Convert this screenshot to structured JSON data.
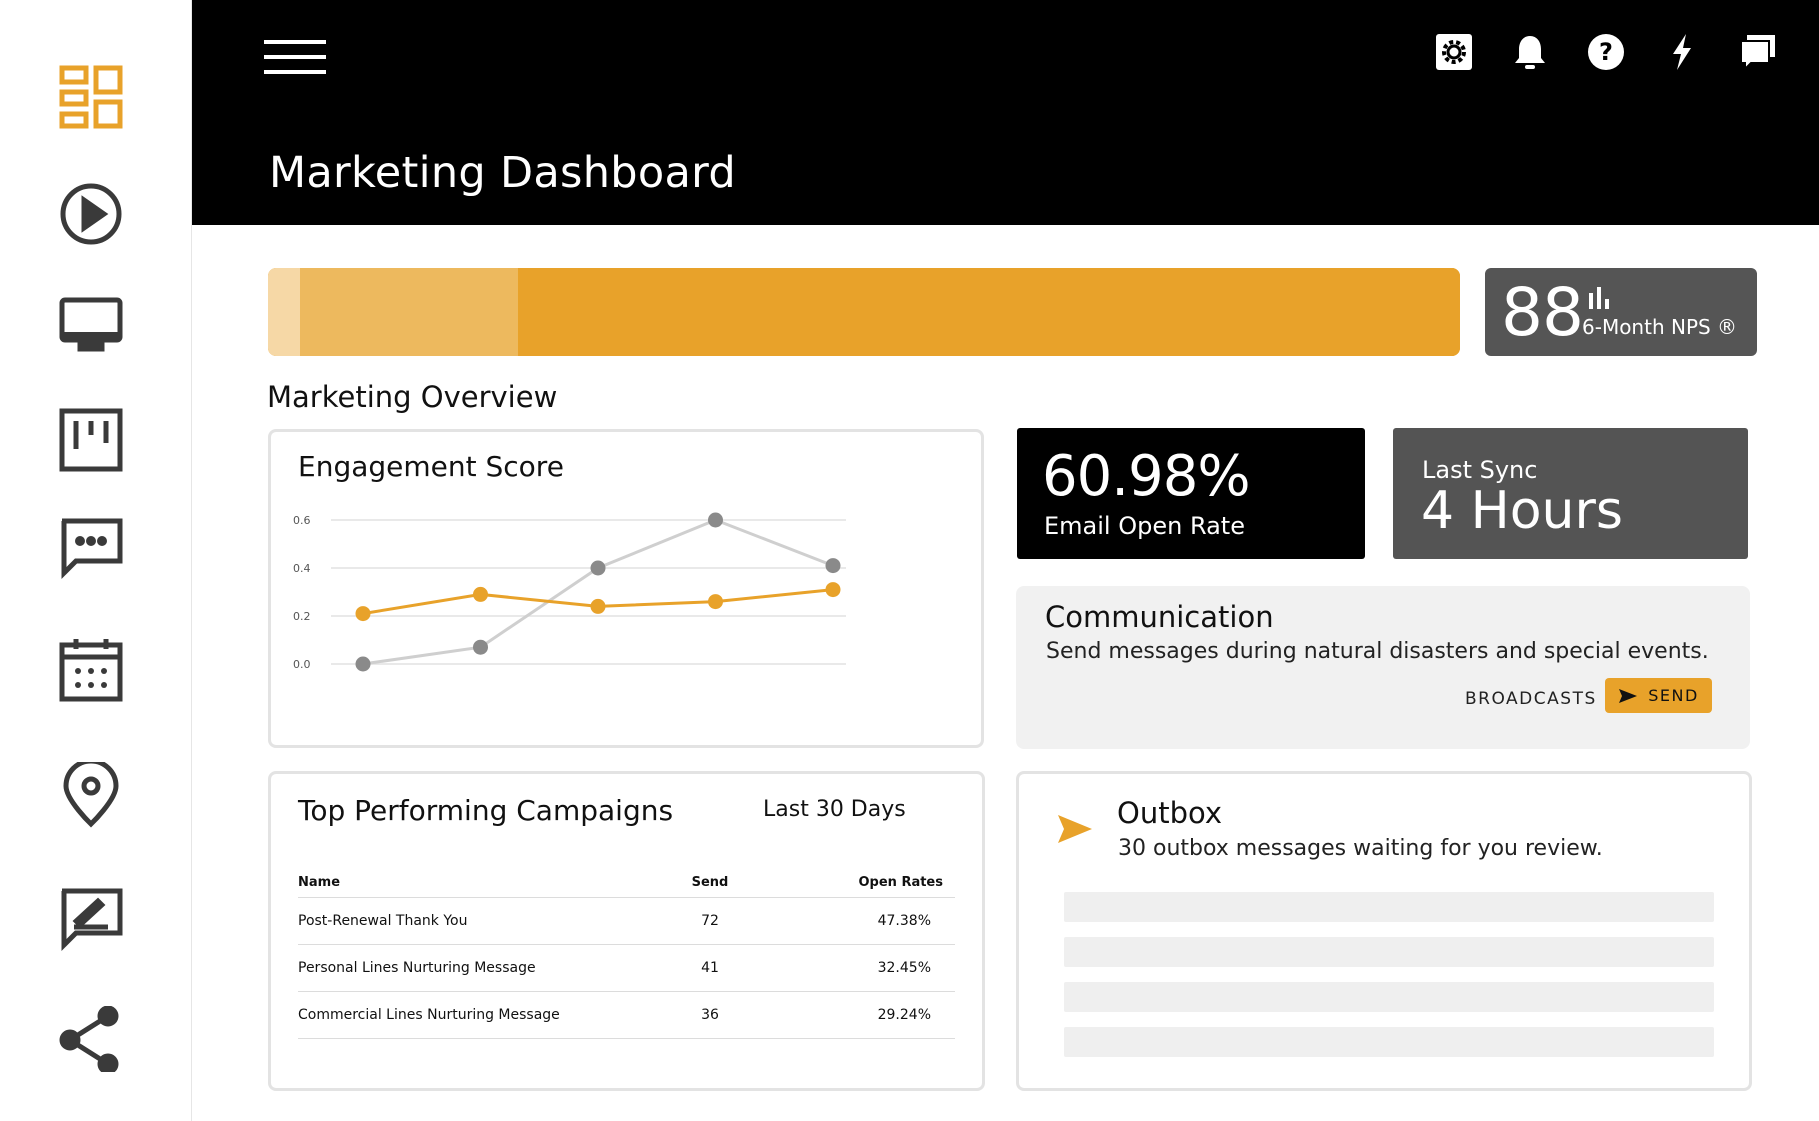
{
  "header": {
    "title": "Marketing Dashboard"
  },
  "sidebar": {
    "items": [
      {
        "icon": "dashboard-icon",
        "active": true
      },
      {
        "icon": "play-icon"
      },
      {
        "icon": "monitor-icon"
      },
      {
        "icon": "kanban-icon"
      },
      {
        "icon": "chat-icon"
      },
      {
        "icon": "calendar-icon"
      },
      {
        "icon": "location-icon"
      },
      {
        "icon": "signature-icon"
      },
      {
        "icon": "share-icon"
      }
    ]
  },
  "topbar_icons": [
    "settings-icon",
    "bell-icon",
    "help-icon",
    "lightning-icon",
    "messages-icon"
  ],
  "nps": {
    "value": "88",
    "label": "6-Month NPS ®"
  },
  "progress": {
    "segments": [
      {
        "fraction": 0.027,
        "color": "#f6d8a6"
      },
      {
        "fraction": 0.183,
        "color": "#edb95e"
      },
      {
        "fraction": 0.79,
        "color": "#e8a22a"
      }
    ]
  },
  "overview": {
    "title": "Marketing Overview"
  },
  "engagement": {
    "title": "Engagement Score"
  },
  "chart_data": {
    "type": "line",
    "title": "Engagement Score",
    "x": [
      1,
      2,
      3,
      4,
      5
    ],
    "ylim": [
      0,
      0.6
    ],
    "y_ticks": [
      "0.0",
      "0.2",
      "0.4",
      "0.6"
    ],
    "grid": true,
    "series": [
      {
        "values": [
          0.0,
          0.07,
          0.4,
          0.6,
          0.41
        ],
        "color": "#8a8a8a",
        "line_color": "#cfcfcf"
      },
      {
        "values": [
          0.21,
          0.29,
          0.24,
          0.26,
          0.31
        ],
        "color": "#e8a22a",
        "line_color": "#e8a22a"
      }
    ]
  },
  "email_stat": {
    "value": "60.98%",
    "label": "Email Open Rate"
  },
  "sync_stat": {
    "label": "Last Sync",
    "value": "4 Hours"
  },
  "communication": {
    "title": "Communication",
    "description": "Send messages during natural disasters and special events.",
    "broadcasts_label": "BROADCASTS",
    "send_label": "SEND"
  },
  "campaigns": {
    "title": "Top Performing Campaigns",
    "range": "Last 30 Days",
    "columns": [
      "Name",
      "Send",
      "Open Rates"
    ],
    "rows": [
      {
        "name": "Post-Renewal Thank You",
        "send": "72",
        "open": "47.38%"
      },
      {
        "name": "Personal Lines Nurturing Message",
        "send": "41",
        "open": "32.45%"
      },
      {
        "name": "Commercial Lines Nurturing Message",
        "send": "36",
        "open": "29.24%"
      }
    ]
  },
  "outbox": {
    "title": "Outbox",
    "description": "30 outbox messages waiting for you review."
  },
  "colors": {
    "accent": "#e8a22a",
    "dark": "#000000",
    "grey_card": "#545454"
  }
}
